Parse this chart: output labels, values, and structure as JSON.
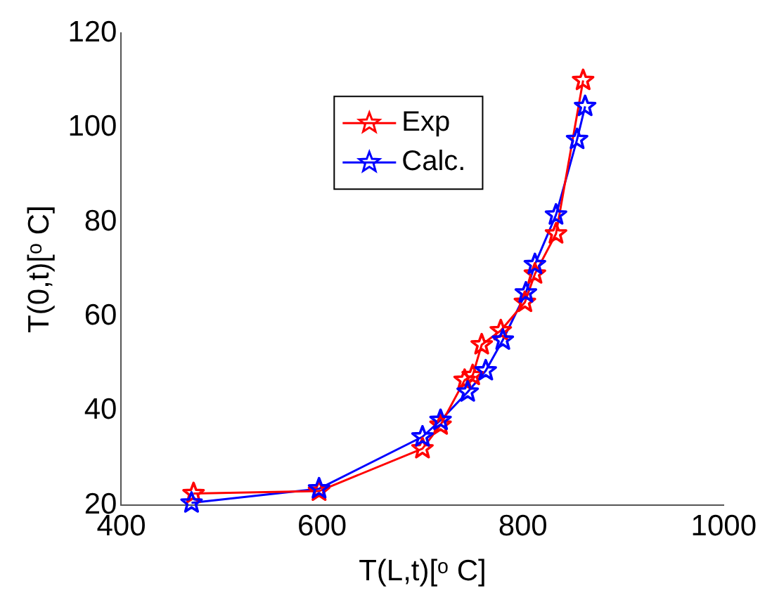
{
  "chart_data": {
    "type": "line",
    "xlabel": "T(L,t)[ᵒ C]",
    "ylabel": "T(0,t)[ᵒ C]",
    "xlim": [
      400,
      1000
    ],
    "xticks": [
      400,
      600,
      800,
      1000
    ],
    "ylim": [
      20,
      120
    ],
    "yticks": [
      20,
      40,
      60,
      80,
      100,
      120
    ],
    "grid": false,
    "legend": "top",
    "marker": "star",
    "line_style": "solid",
    "series": [
      {
        "name": "Exp",
        "color": "#ff0000",
        "x": [
          472,
          597,
          700,
          718,
          742,
          750,
          759,
          778,
          802,
          812,
          833,
          860
        ],
        "values": [
          22.5,
          23,
          32,
          37,
          46.5,
          47.5,
          54,
          57,
          63,
          69,
          77.5,
          110
        ]
      },
      {
        "name": "Calc.",
        "color": "#0000ff",
        "x": [
          470,
          597,
          700,
          718,
          745,
          763,
          780,
          803,
          812,
          833,
          854,
          862
        ],
        "values": [
          20.5,
          23.5,
          34.5,
          38,
          44,
          48.5,
          55,
          65,
          71,
          81.5,
          97.5,
          104.5
        ]
      }
    ]
  }
}
